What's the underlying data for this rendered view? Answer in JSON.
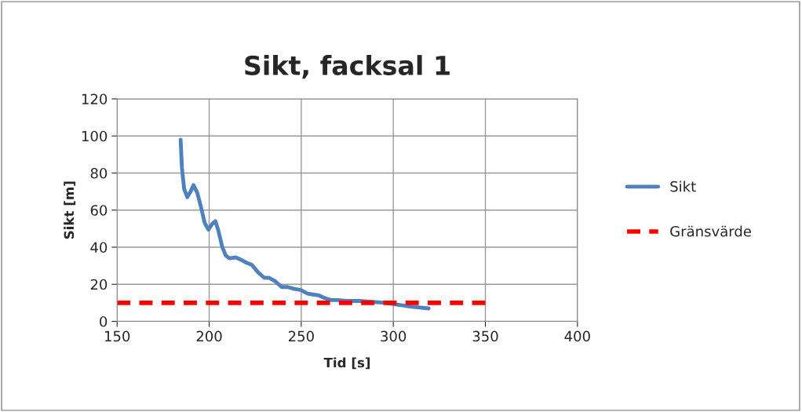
{
  "chart_data": {
    "type": "line",
    "title": "Sikt, facksal 1",
    "xlabel": "Tid [s]",
    "ylabel": "Sikt [m]",
    "xlim": [
      150,
      400
    ],
    "xticks": [
      150,
      200,
      250,
      300,
      350,
      400
    ],
    "ylim": [
      0,
      120
    ],
    "yticks": [
      0,
      20,
      40,
      60,
      80,
      100,
      120
    ],
    "grid": true,
    "legend": "right",
    "marker": "none",
    "series": [
      {
        "name": "Sikt",
        "color": "#4f81bd",
        "line_style": "solid",
        "x": [
          184.5,
          185.2,
          186.4,
          188.1,
          189.9,
          191.5,
          193.5,
          195.6,
          197.6,
          199.6,
          201.6,
          203.4,
          205.0,
          207.0,
          209.0,
          211.1,
          214.4,
          217.8,
          220.5,
          223.2,
          226.5,
          229.9,
          232.6,
          236.0,
          239.4,
          242.7,
          246.1,
          249.5,
          253.5,
          256.2,
          259.6,
          262.9,
          266.3,
          269.7,
          275.1,
          281.9,
          295.7,
          309.1,
          319.2
        ],
        "values": [
          98,
          83,
          71.5,
          67,
          70,
          73.5,
          69.5,
          61.5,
          53,
          49.5,
          52.5,
          54,
          49,
          40.5,
          35.5,
          34,
          34.5,
          33,
          31.5,
          30.5,
          26.5,
          23.5,
          23.5,
          21.5,
          18.5,
          18.5,
          17.5,
          17,
          15,
          14.5,
          14,
          12.5,
          11.5,
          11.5,
          11,
          11,
          10,
          8,
          7
        ]
      },
      {
        "name": "Gränsvärde",
        "color": "#ff0000",
        "line_style": "dashed",
        "x": [
          150,
          350
        ],
        "values": [
          10,
          10
        ]
      }
    ]
  }
}
